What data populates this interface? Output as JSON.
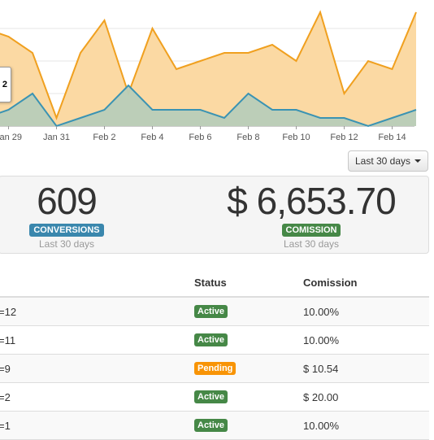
{
  "chart_data": {
    "type": "area",
    "x_ticks": [
      "Jan 29",
      "Jan 31",
      "Feb 2",
      "Feb 4",
      "Feb 6",
      "Feb 8",
      "Feb 10",
      "Feb 12",
      "Feb 14"
    ],
    "series": [
      {
        "color": "#f0a01f",
        "fill": "#fbd9a3",
        "values": [
          12,
          11,
          9,
          1,
          9,
          13,
          4,
          12,
          7,
          8,
          9,
          9,
          10,
          8,
          14,
          4,
          8,
          7,
          14
        ]
      },
      {
        "color": "#3a93b3",
        "fill": "#b8cdb9",
        "values": [
          1,
          2,
          4,
          0,
          1,
          2,
          5,
          2,
          2,
          2,
          1,
          4,
          2,
          2,
          1,
          1,
          0,
          1,
          2
        ]
      }
    ],
    "ylim": [
      0,
      14
    ],
    "tooltip": "2"
  },
  "range_button": {
    "label": "Last 30 days"
  },
  "stats": {
    "conversions": {
      "value": "609",
      "badge": "CONVERSIONS",
      "sub": "Last 30 days",
      "color": "#3a87ad"
    },
    "commission": {
      "value": "$ 6,653.70",
      "badge": "COMISSION",
      "sub": "Last 30 days",
      "color": "#468847"
    }
  },
  "table": {
    "headers": {
      "status": "Status",
      "commission": "Comission"
    },
    "rows": [
      {
        "id": "=12",
        "status": "Active",
        "status_color": "#468847",
        "commission": "10.00%"
      },
      {
        "id": "=11",
        "status": "Active",
        "status_color": "#468847",
        "commission": "10.00%"
      },
      {
        "id": "=9",
        "status": "Pending",
        "status_color": "#f89406",
        "commission": "$ 10.54"
      },
      {
        "id": "=2",
        "status": "Active",
        "status_color": "#468847",
        "commission": "$ 20.00"
      },
      {
        "id": "=1",
        "status": "Active",
        "status_color": "#468847",
        "commission": "10.00%"
      }
    ]
  }
}
